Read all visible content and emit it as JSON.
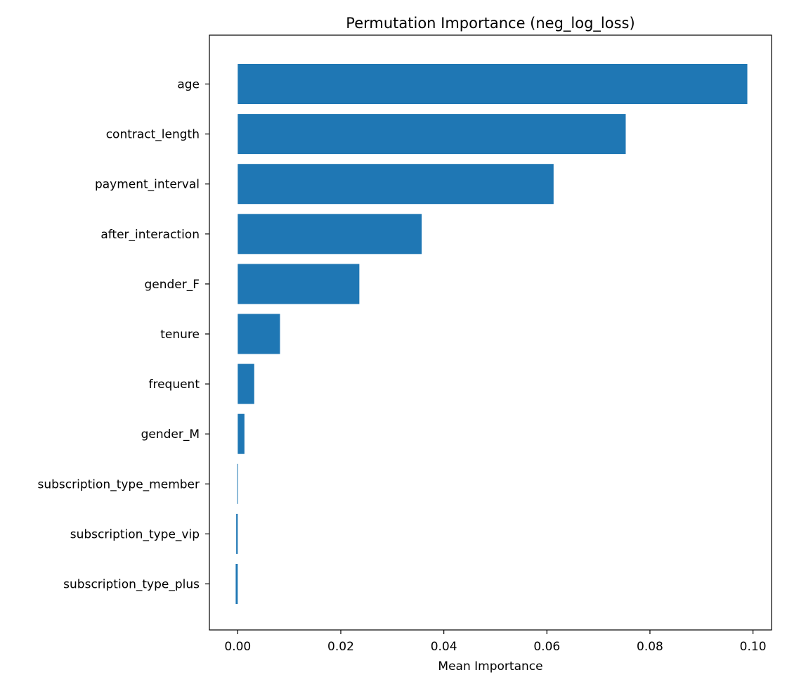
{
  "chart_data": {
    "type": "bar",
    "orientation": "horizontal",
    "title": "Permutation Importance (neg_log_loss)",
    "xlabel": "Mean Importance",
    "ylabel": "",
    "categories": [
      "age",
      "contract_length",
      "payment_interval",
      "after_interaction",
      "gender_F",
      "tenure",
      "frequent",
      "gender_M",
      "subscription_type_member",
      "subscription_type_vip",
      "subscription_type_plus"
    ],
    "values": [
      0.0989,
      0.0753,
      0.0613,
      0.0357,
      0.0236,
      0.0082,
      0.0032,
      0.0013,
      -0.0001,
      -0.0003,
      -0.0004
    ],
    "xlim": [
      -0.0055,
      0.1036
    ],
    "xticks": [
      0.0,
      0.02,
      0.04,
      0.06,
      0.08,
      0.1
    ],
    "xtick_labels": [
      "0.00",
      "0.02",
      "0.04",
      "0.06",
      "0.08",
      "0.10"
    ],
    "bar_color": "#1f77b4",
    "grid": false,
    "legend": "none"
  }
}
